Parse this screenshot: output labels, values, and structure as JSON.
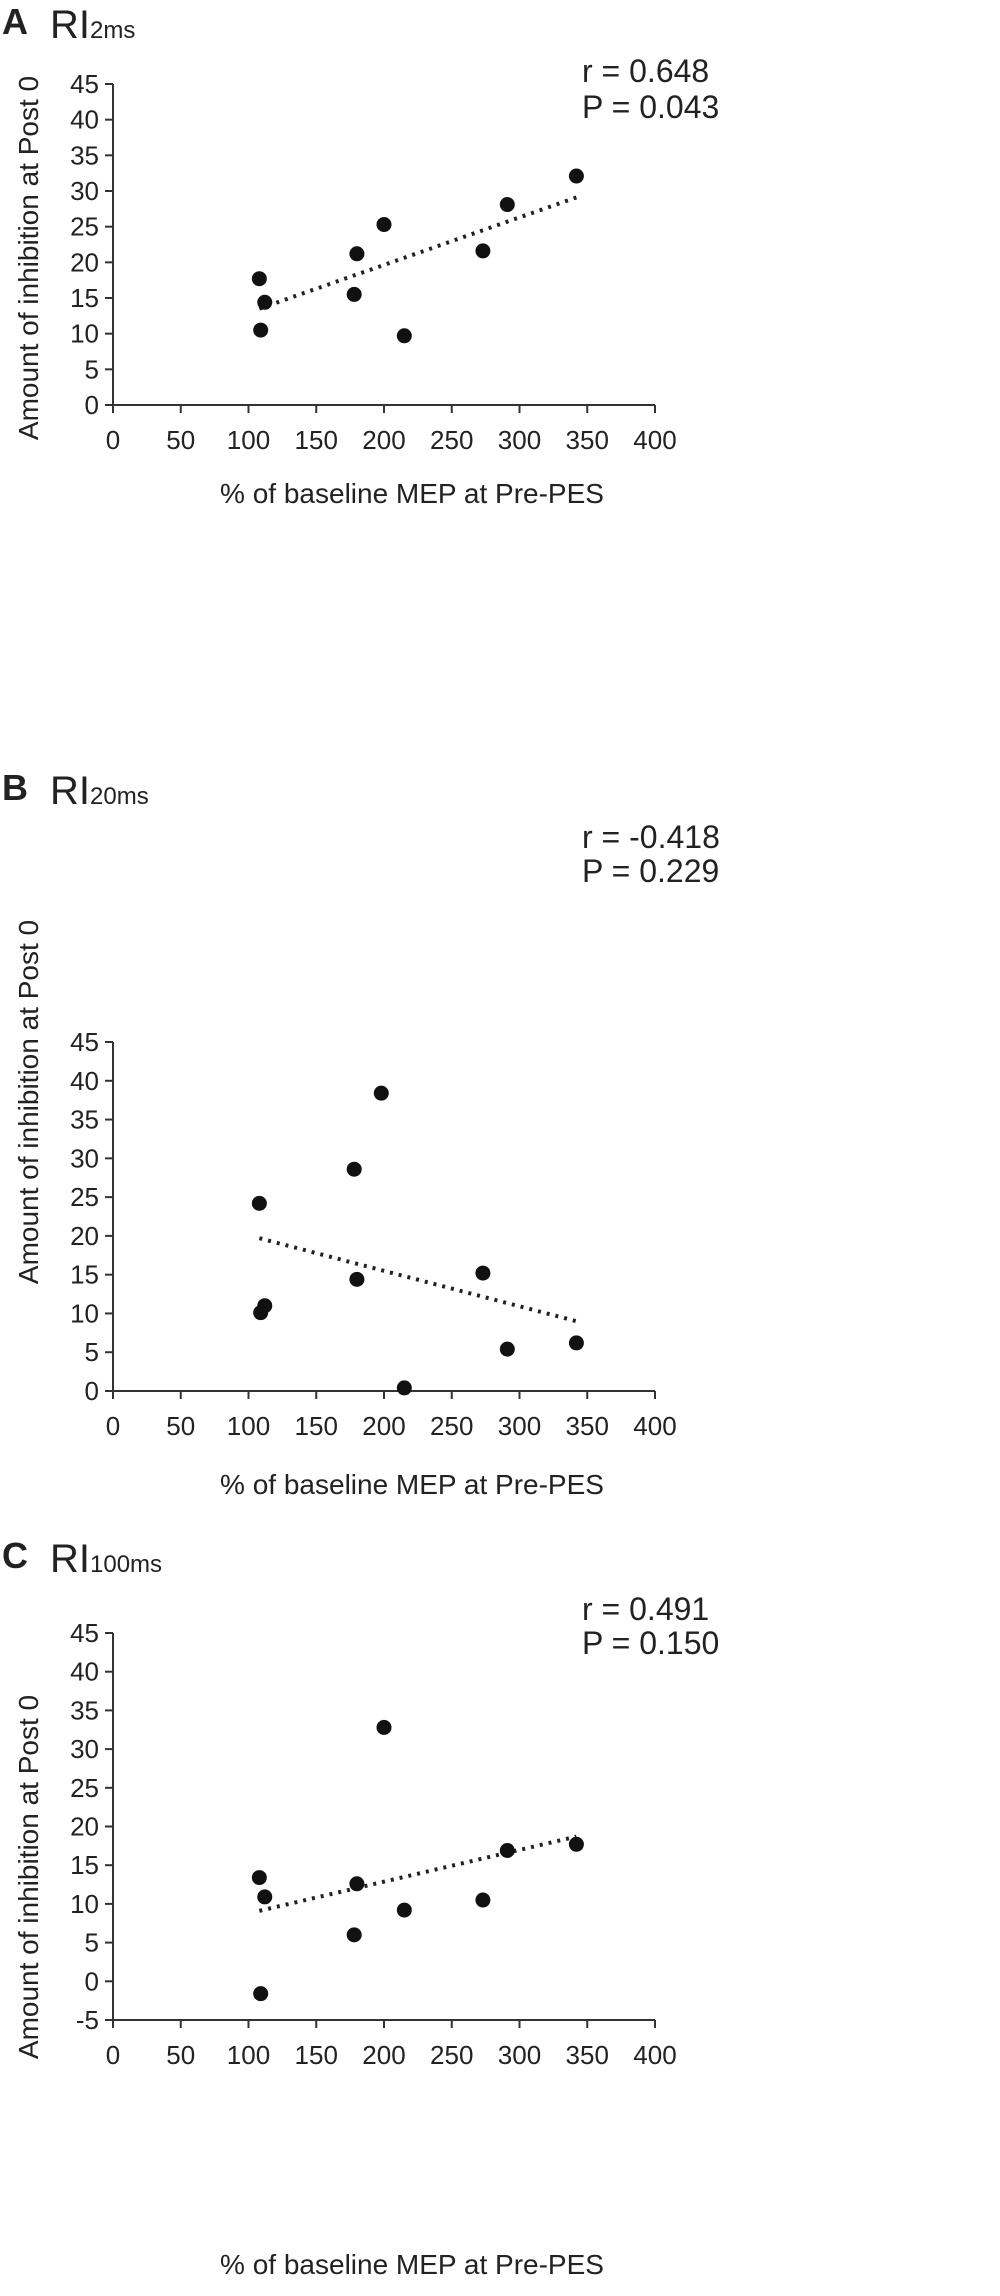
{
  "chart_data": [
    {
      "type": "scatter",
      "panel_label": "A",
      "title": "RI",
      "title_subscript": "2ms",
      "stats": {
        "r": "r  = 0.648",
        "p": "P = 0.043"
      },
      "xlabel": "% of baseline MEP at Pre-PES",
      "ylabel": "Amount of inhibition at Post 0",
      "xlim": [
        0,
        400
      ],
      "ylim": [
        0,
        45
      ],
      "xticks": [
        0,
        50,
        100,
        150,
        200,
        250,
        300,
        350,
        400
      ],
      "yticks": [
        0,
        5,
        10,
        15,
        20,
        25,
        30,
        35,
        40,
        45
      ],
      "points": {
        "x": [
          108,
          112,
          109,
          178,
          180,
          200,
          215,
          273,
          291,
          342
        ],
        "y": [
          17.7,
          14.4,
          10.5,
          15.5,
          21.2,
          25.3,
          9.7,
          21.6,
          28.1,
          32.1
        ]
      },
      "trendline": {
        "x": [
          108,
          342
        ],
        "y": [
          13.5,
          29.1
        ]
      }
    },
    {
      "type": "scatter",
      "panel_label": "B",
      "title": "RI",
      "title_subscript": "20ms",
      "stats": {
        "r": "r  = -0.418",
        "p": "P = 0.229"
      },
      "xlabel": "% of baseline MEP at Pre-PES",
      "ylabel": "Amount of inhibition at Post 0",
      "xlim": [
        0,
        400
      ],
      "ylim": [
        0,
        45
      ],
      "xticks": [
        0,
        50,
        100,
        150,
        200,
        250,
        300,
        350,
        400
      ],
      "yticks": [
        0,
        5,
        10,
        15,
        20,
        25,
        30,
        35,
        40,
        45
      ],
      "points": {
        "x": [
          108,
          112,
          109,
          178,
          180,
          198,
          215,
          273,
          291,
          342
        ],
        "y": [
          24.2,
          11.0,
          10.1,
          28.6,
          14.4,
          38.4,
          0.4,
          15.2,
          5.4,
          6.2
        ]
      },
      "trendline": {
        "x": [
          108,
          342
        ],
        "y": [
          19.7,
          9.0
        ]
      }
    },
    {
      "type": "scatter",
      "panel_label": "C",
      "title": "RI",
      "title_subscript": "100ms",
      "stats": {
        "r": "r  = 0.491",
        "p": "P = 0.150"
      },
      "xlabel": "% of baseline MEP at Pre-PES",
      "ylabel": "Amount of inhibition at Post 0",
      "xlim": [
        0,
        400
      ],
      "ylim": [
        -5,
        45
      ],
      "xticks": [
        0,
        50,
        100,
        150,
        200,
        250,
        300,
        350,
        400
      ],
      "yticks": [
        -5,
        0,
        5,
        10,
        15,
        20,
        25,
        30,
        35,
        40,
        45
      ],
      "points": {
        "x": [
          108,
          112,
          109,
          178,
          180,
          200,
          215,
          273,
          291,
          342
        ],
        "y": [
          13.4,
          10.9,
          -1.6,
          6.0,
          12.6,
          32.8,
          9.2,
          10.5,
          16.9,
          17.7
        ]
      },
      "trendline": {
        "x": [
          108,
          342
        ],
        "y": [
          9.1,
          18.7
        ]
      }
    }
  ]
}
